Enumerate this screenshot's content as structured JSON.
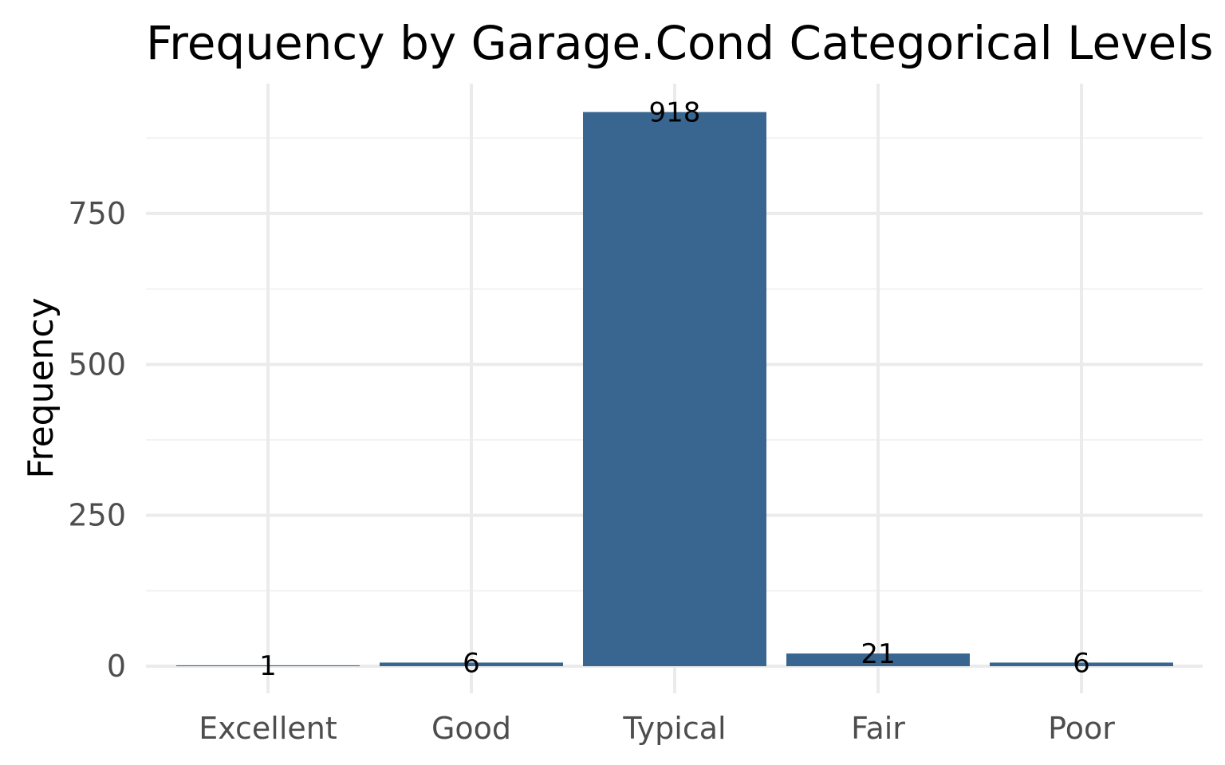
{
  "chart_data": {
    "type": "bar",
    "title": "Frequency by Garage.Cond Categorical Levels",
    "xlabel": "",
    "ylabel": "Frequency",
    "categories": [
      "Excellent",
      "Good",
      "Typical",
      "Fair",
      "Poor"
    ],
    "values": [
      1,
      6,
      918,
      21,
      6
    ],
    "data_labels": [
      "1",
      "6",
      "918",
      "21",
      "6"
    ],
    "y_ticks": [
      0,
      250,
      500,
      750
    ],
    "y_tick_labels": [
      "0",
      "250",
      "500",
      "750"
    ],
    "ylim": [
      0,
      960
    ],
    "grid": true,
    "legend": "none",
    "bar_color": "#386690"
  }
}
